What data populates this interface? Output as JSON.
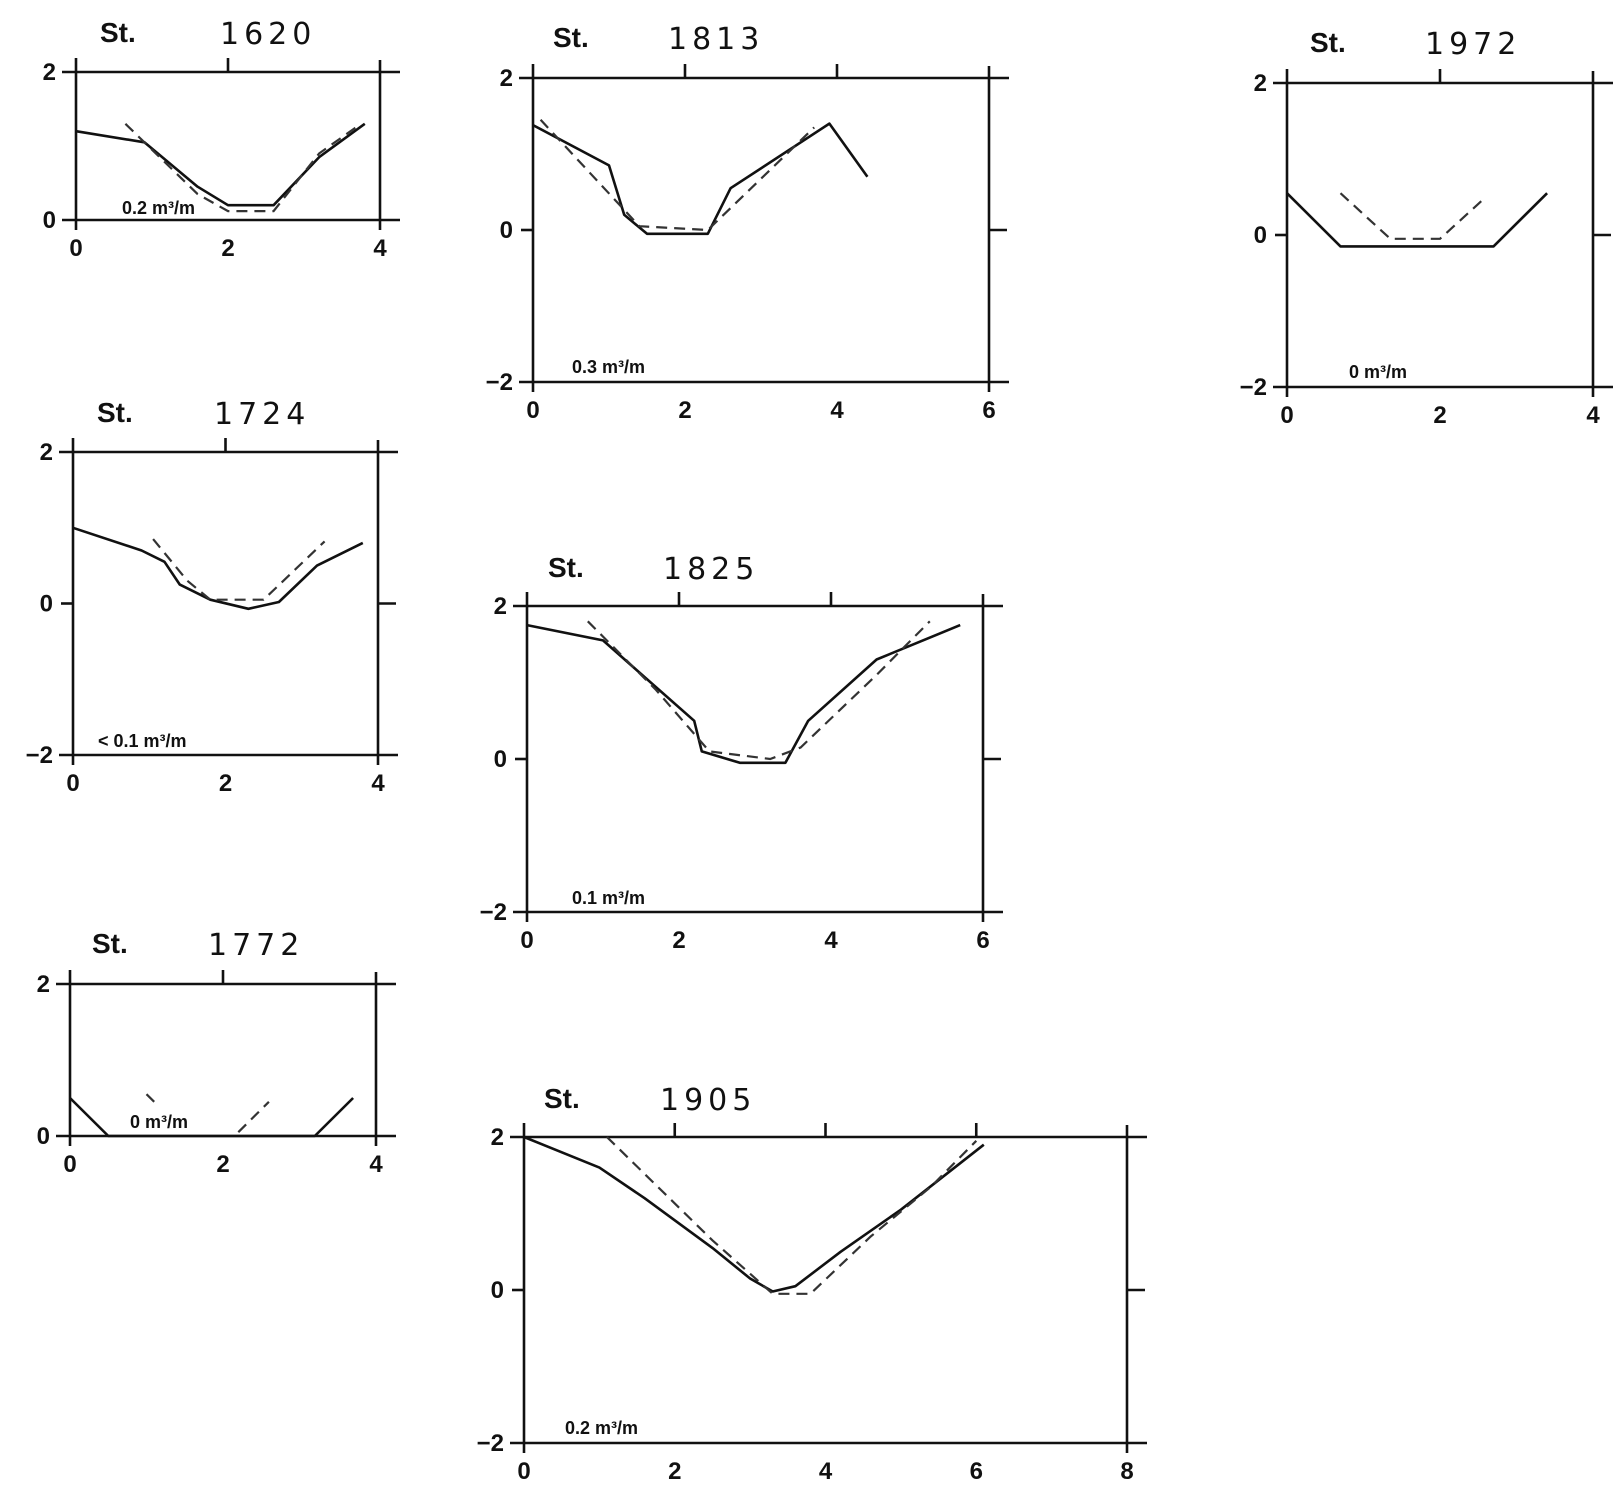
{
  "chart_data": [
    {
      "type": "line",
      "station_label": "St.",
      "station": "1620",
      "volume_label": "0.2 m³/m",
      "xlim": [
        0,
        4
      ],
      "ylim": [
        0,
        2
      ],
      "x_ticks": [
        "0",
        "2",
        "4"
      ],
      "y_ticks": [
        "0",
        "2"
      ],
      "series": [
        {
          "style": "solid",
          "points": [
            [
              0,
              1.2
            ],
            [
              0.9,
              1.05
            ],
            [
              1.6,
              0.45
            ],
            [
              2.0,
              0.2
            ],
            [
              2.6,
              0.2
            ],
            [
              3.2,
              0.85
            ],
            [
              3.8,
              1.3
            ]
          ]
        },
        {
          "style": "dashed",
          "points": [
            [
              0.65,
              1.3
            ],
            [
              1.6,
              0.35
            ],
            [
              2.0,
              0.12
            ],
            [
              2.6,
              0.12
            ],
            [
              3.2,
              0.9
            ],
            [
              3.75,
              1.3
            ]
          ]
        }
      ]
    },
    {
      "type": "line",
      "station_label": "St.",
      "station": "1724",
      "volume_label": "< 0.1 m³/m",
      "xlim": [
        0,
        4
      ],
      "ylim": [
        -2,
        2
      ],
      "x_ticks": [
        "0",
        "2",
        "4"
      ],
      "y_ticks": [
        "-2",
        "0",
        "2"
      ],
      "series": [
        {
          "style": "solid",
          "points": [
            [
              0,
              1.0
            ],
            [
              0.9,
              0.7
            ],
            [
              1.2,
              0.55
            ],
            [
              1.4,
              0.25
            ],
            [
              1.8,
              0.05
            ],
            [
              2.3,
              -0.07
            ],
            [
              2.7,
              0.02
            ],
            [
              3.2,
              0.5
            ],
            [
              3.8,
              0.8
            ]
          ]
        },
        {
          "style": "dashed",
          "points": [
            [
              1.05,
              0.85
            ],
            [
              1.5,
              0.3
            ],
            [
              1.8,
              0.05
            ],
            [
              2.5,
              0.05
            ],
            [
              3.3,
              0.82
            ]
          ]
        }
      ]
    },
    {
      "type": "line",
      "station_label": "St.",
      "station": "1772",
      "volume_label": "0 m³/m",
      "xlim": [
        0,
        4
      ],
      "ylim": [
        0,
        2
      ],
      "x_ticks": [
        "0",
        "2",
        "4"
      ],
      "y_ticks": [
        "0",
        "2"
      ],
      "series": [
        {
          "style": "solid",
          "points": [
            [
              0,
              0.5
            ],
            [
              0.5,
              0.0
            ],
            [
              3.2,
              0.0
            ],
            [
              3.7,
              0.5
            ]
          ]
        },
        {
          "style": "dashed",
          "points": [
            [
              1.0,
              0.55
            ],
            [
              1.1,
              0.45
            ]
          ]
        },
        {
          "style": "dashed",
          "points": [
            [
              2.2,
              0.05
            ],
            [
              2.6,
              0.45
            ]
          ]
        }
      ]
    },
    {
      "type": "line",
      "station_label": "St.",
      "station": "1813",
      "volume_label": "0.3 m³/m",
      "xlim": [
        0,
        6
      ],
      "ylim": [
        -2,
        2
      ],
      "x_ticks": [
        "0",
        "2",
        "4",
        "6"
      ],
      "y_ticks": [
        "-2",
        "0",
        "2"
      ],
      "series": [
        {
          "style": "solid",
          "points": [
            [
              0,
              1.38
            ],
            [
              1.0,
              0.85
            ],
            [
              1.2,
              0.2
            ],
            [
              1.5,
              -0.05
            ],
            [
              2.3,
              -0.05
            ],
            [
              2.6,
              0.55
            ],
            [
              3.9,
              1.4
            ],
            [
              4.4,
              0.7
            ]
          ]
        },
        {
          "style": "dashed",
          "points": [
            [
              0.1,
              1.45
            ],
            [
              1.4,
              0.05
            ],
            [
              2.3,
              0.0
            ],
            [
              3.7,
              1.35
            ]
          ]
        }
      ]
    },
    {
      "type": "line",
      "station_label": "St.",
      "station": "1825",
      "volume_label": "0.1 m³/m",
      "xlim": [
        0,
        6
      ],
      "ylim": [
        -2,
        2
      ],
      "x_ticks": [
        "0",
        "2",
        "4",
        "6"
      ],
      "y_ticks": [
        "-2",
        "0",
        "2"
      ],
      "series": [
        {
          "style": "solid",
          "points": [
            [
              0,
              1.75
            ],
            [
              1.0,
              1.55
            ],
            [
              2.2,
              0.5
            ],
            [
              2.3,
              0.1
            ],
            [
              2.8,
              -0.05
            ],
            [
              3.4,
              -0.05
            ],
            [
              3.7,
              0.5
            ],
            [
              4.6,
              1.3
            ],
            [
              5.7,
              1.75
            ]
          ]
        },
        {
          "style": "dashed",
          "points": [
            [
              0.8,
              1.8
            ],
            [
              1.7,
              0.9
            ],
            [
              2.4,
              0.1
            ],
            [
              3.2,
              0.0
            ],
            [
              3.6,
              0.15
            ],
            [
              4.6,
              1.1
            ],
            [
              5.3,
              1.8
            ]
          ]
        }
      ]
    },
    {
      "type": "line",
      "station_label": "St.",
      "station": "1905",
      "volume_label": "0.2 m³/m",
      "xlim": [
        0,
        8
      ],
      "ylim": [
        -2,
        2
      ],
      "x_ticks": [
        "0",
        "2",
        "4",
        "6",
        "8"
      ],
      "y_ticks": [
        "-2",
        "0",
        "2"
      ],
      "series": [
        {
          "style": "solid",
          "points": [
            [
              0,
              2.0
            ],
            [
              1.0,
              1.6
            ],
            [
              1.6,
              1.2
            ],
            [
              2.5,
              0.55
            ],
            [
              3.0,
              0.15
            ],
            [
              3.3,
              -0.02
            ],
            [
              3.6,
              0.05
            ],
            [
              4.2,
              0.5
            ],
            [
              5.0,
              1.05
            ],
            [
              6.1,
              1.9
            ]
          ]
        },
        {
          "style": "dashed",
          "points": [
            [
              1.1,
              2.0
            ],
            [
              2.5,
              0.65
            ],
            [
              3.3,
              -0.05
            ],
            [
              3.8,
              -0.05
            ],
            [
              4.6,
              0.7
            ],
            [
              5.4,
              1.35
            ],
            [
              6.0,
              1.95
            ]
          ]
        }
      ]
    },
    {
      "type": "line",
      "station_label": "St.",
      "station": "1972",
      "volume_label": "0 m³/m",
      "xlim": [
        0,
        4
      ],
      "ylim": [
        -2,
        2
      ],
      "x_ticks": [
        "0",
        "2",
        "4"
      ],
      "y_ticks": [
        "-2",
        "0",
        "2"
      ],
      "series": [
        {
          "style": "solid",
          "points": [
            [
              0,
              0.55
            ],
            [
              0.7,
              -0.15
            ],
            [
              2.7,
              -0.15
            ],
            [
              3.4,
              0.55
            ]
          ]
        },
        {
          "style": "dashed",
          "points": [
            [
              0.7,
              0.55
            ],
            [
              1.35,
              -0.05
            ],
            [
              2.0,
              -0.05
            ],
            [
              2.6,
              0.5
            ]
          ]
        }
      ]
    }
  ]
}
